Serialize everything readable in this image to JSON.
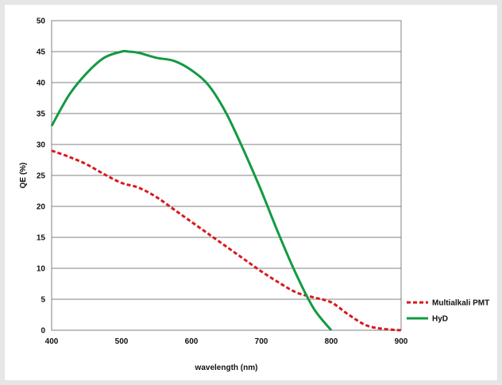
{
  "chart_data": {
    "type": "line",
    "title": "",
    "xlabel": "wavelength (nm)",
    "ylabel": "QE (%)",
    "xlim": [
      400,
      900
    ],
    "ylim": [
      0,
      50
    ],
    "xticks": [
      400,
      500,
      600,
      700,
      800,
      900
    ],
    "yticks": [
      0,
      5,
      10,
      15,
      20,
      25,
      30,
      35,
      40,
      45,
      50
    ],
    "grid": "horizontal",
    "legend_position": "right",
    "series": [
      {
        "name": "Multialkali PMT",
        "color": "#d7191c",
        "style": "dashed",
        "x": [
          400,
          425,
          450,
          475,
          500,
          525,
          550,
          575,
          600,
          625,
          650,
          675,
          700,
          725,
          750,
          775,
          800,
          825,
          850,
          875,
          900
        ],
        "y": [
          29,
          28,
          26.8,
          25.2,
          23.8,
          23,
          21.5,
          19.5,
          17.5,
          15.5,
          13.5,
          11.5,
          9.5,
          7.7,
          6.1,
          5.3,
          4.5,
          2.5,
          0.8,
          0.2,
          0
        ]
      },
      {
        "name": "HyD",
        "color": "#139a43",
        "style": "solid",
        "x": [
          400,
          425,
          450,
          475,
          500,
          510,
          525,
          550,
          575,
          600,
          625,
          650,
          675,
          700,
          725,
          750,
          775,
          800
        ],
        "y": [
          33,
          38,
          41.5,
          44,
          45,
          45,
          44.8,
          44,
          43.5,
          42,
          39.5,
          35,
          29,
          22.5,
          15.5,
          9,
          3.5,
          0
        ]
      }
    ]
  }
}
